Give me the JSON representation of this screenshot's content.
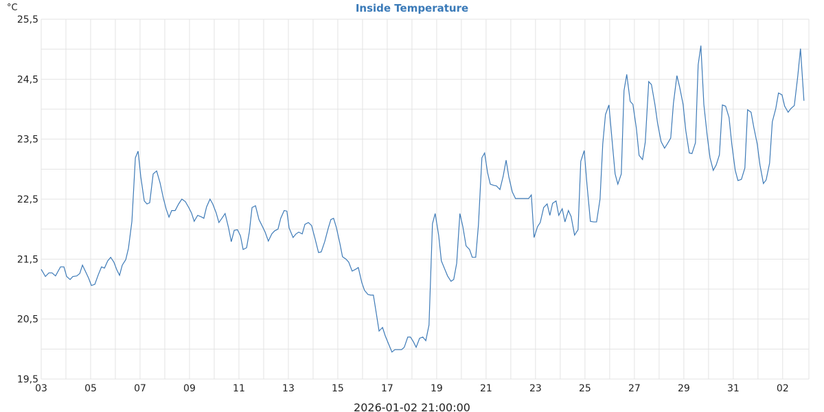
{
  "chart_data": {
    "type": "line",
    "title": "Inside Temperature",
    "y_unit": "°C",
    "x_label": "2026-01-02 21:00:00",
    "color": "#3d7ab7",
    "grid": true,
    "xlim": [
      0,
      31.06
    ],
    "ylim": [
      19.5,
      25.5
    ],
    "xticks": [
      {
        "value": 0,
        "label": "03"
      },
      {
        "value": 2,
        "label": "05"
      },
      {
        "value": 4,
        "label": "07"
      },
      {
        "value": 6,
        "label": "09"
      },
      {
        "value": 8,
        "label": "11"
      },
      {
        "value": 10,
        "label": "13"
      },
      {
        "value": 12,
        "label": "15"
      },
      {
        "value": 14,
        "label": "17"
      },
      {
        "value": 16,
        "label": "19"
      },
      {
        "value": 18,
        "label": "21"
      },
      {
        "value": 20,
        "label": "23"
      },
      {
        "value": 22,
        "label": "25"
      },
      {
        "value": 24,
        "label": "27"
      },
      {
        "value": 26,
        "label": "29"
      },
      {
        "value": 28,
        "label": "31"
      },
      {
        "value": 30,
        "label": "02"
      }
    ],
    "x_minor_grid": [
      1,
      3,
      5,
      7,
      9,
      11,
      13,
      15,
      17,
      19,
      21,
      23,
      25,
      27,
      29
    ],
    "yticks": [
      {
        "value": 19.5,
        "label": "19,5"
      },
      {
        "value": 20.5,
        "label": "20,5"
      },
      {
        "value": 21.5,
        "label": "21,5"
      },
      {
        "value": 22.5,
        "label": "22,5"
      },
      {
        "value": 23.5,
        "label": "23,5"
      },
      {
        "value": 24.5,
        "label": "24,5"
      },
      {
        "value": 25.5,
        "label": "25,5"
      }
    ],
    "y_minor_grid": [
      20,
      21,
      22,
      23,
      24,
      25
    ],
    "x": [
      0,
      0.17,
      0.31,
      0.44,
      0.58,
      0.78,
      0.92,
      1.03,
      1.17,
      1.28,
      1.44,
      1.56,
      1.67,
      1.83,
      1.92,
      2.03,
      2.17,
      2.31,
      2.44,
      2.56,
      2.69,
      2.81,
      2.94,
      3.06,
      3.17,
      3.28,
      3.42,
      3.53,
      3.67,
      3.81,
      3.92,
      4.03,
      4.17,
      4.28,
      4.39,
      4.53,
      4.67,
      4.81,
      4.94,
      5.06,
      5.17,
      5.28,
      5.42,
      5.56,
      5.69,
      5.83,
      5.97,
      6.08,
      6.19,
      6.33,
      6.5,
      6.58,
      6.69,
      6.83,
      6.94,
      7.08,
      7.19,
      7.31,
      7.44,
      7.58,
      7.69,
      7.81,
      7.94,
      8.06,
      8.17,
      8.31,
      8.42,
      8.53,
      8.67,
      8.81,
      8.92,
      9.06,
      9.19,
      9.33,
      9.44,
      9.58,
      9.69,
      9.83,
      9.94,
      10.03,
      10.19,
      10.31,
      10.42,
      10.56,
      10.67,
      10.81,
      10.94,
      11.08,
      11.22,
      11.33,
      11.47,
      11.61,
      11.72,
      11.83,
      11.94,
      12.08,
      12.19,
      12.33,
      12.44,
      12.58,
      12.72,
      12.83,
      12.97,
      13.08,
      13.22,
      13.33,
      13.44,
      13.56,
      13.67,
      13.81,
      13.92,
      14.06,
      14.19,
      14.31,
      14.44,
      14.58,
      14.69,
      14.83,
      14.94,
      15.06,
      15.17,
      15.31,
      15.44,
      15.56,
      15.69,
      15.83,
      15.94,
      16.08,
      16.19,
      16.33,
      16.44,
      16.58,
      16.69,
      16.81,
      16.94,
      17.06,
      17.19,
      17.33,
      17.44,
      17.58,
      17.69,
      17.83,
      17.94,
      18.06,
      18.17,
      18.31,
      18.42,
      18.56,
      18.69,
      18.81,
      18.92,
      19.06,
      19.19,
      19.31,
      19.44,
      19.61,
      19.72,
      19.83,
      19.94,
      20.08,
      20.19,
      20.33,
      20.47,
      20.58,
      20.69,
      20.83,
      20.94,
      21.08,
      21.19,
      21.33,
      21.44,
      21.58,
      21.72,
      21.83,
      21.97,
      22.08,
      22.22,
      22.36,
      22.47,
      22.61,
      22.72,
      22.83,
      22.97,
      23.11,
      23.22,
      23.33,
      23.47,
      23.58,
      23.69,
      23.83,
      23.94,
      24.08,
      24.19,
      24.33,
      24.44,
      24.58,
      24.69,
      24.83,
      24.94,
      25.08,
      25.22,
      25.33,
      25.47,
      25.58,
      25.72,
      25.83,
      25.97,
      26.08,
      26.22,
      26.33,
      26.47,
      26.58,
      26.69,
      26.81,
      26.94,
      27.06,
      27.19,
      27.31,
      27.44,
      27.56,
      27.69,
      27.83,
      27.94,
      28.08,
      28.19,
      28.33,
      28.47,
      28.58,
      28.72,
      28.83,
      28.97,
      29.08,
      29.22,
      29.33,
      29.47,
      29.58,
      29.72,
      29.83,
      29.97,
      30.08,
      30.22,
      30.33,
      30.47,
      30.61,
      30.72,
      30.86
    ],
    "values": [
      21.33,
      21.21,
      21.27,
      21.27,
      21.22,
      21.37,
      21.37,
      21.21,
      21.16,
      21.21,
      21.22,
      21.26,
      21.4,
      21.26,
      21.18,
      21.06,
      21.08,
      21.24,
      21.37,
      21.35,
      21.47,
      21.53,
      21.45,
      21.32,
      21.23,
      21.4,
      21.49,
      21.68,
      22.13,
      23.19,
      23.3,
      22.87,
      22.47,
      22.42,
      22.44,
      22.92,
      22.97,
      22.77,
      22.52,
      22.33,
      22.2,
      22.31,
      22.31,
      22.42,
      22.5,
      22.46,
      22.36,
      22.27,
      22.13,
      22.23,
      22.2,
      22.18,
      22.37,
      22.5,
      22.42,
      22.27,
      22.11,
      22.18,
      22.26,
      22.02,
      21.79,
      21.98,
      21.99,
      21.89,
      21.66,
      21.69,
      21.95,
      22.36,
      22.39,
      22.16,
      22.07,
      21.95,
      21.8,
      21.92,
      21.97,
      22,
      22.18,
      22.31,
      22.3,
      22.02,
      21.86,
      21.92,
      21.95,
      21.92,
      22.08,
      22.11,
      22.06,
      21.84,
      21.61,
      21.62,
      21.79,
      22.01,
      22.16,
      22.18,
      22.03,
      21.77,
      21.54,
      21.5,
      21.45,
      21.3,
      21.33,
      21.36,
      21.11,
      20.98,
      20.91,
      20.9,
      20.9,
      20.59,
      20.3,
      20.36,
      20.22,
      20.08,
      19.95,
      19.99,
      19.99,
      19.99,
      20.03,
      20.2,
      20.2,
      20.12,
      20.03,
      20.18,
      20.2,
      20.14,
      20.4,
      22.09,
      22.26,
      21.9,
      21.47,
      21.33,
      21.22,
      21.13,
      21.16,
      21.43,
      22.26,
      22.04,
      21.72,
      21.66,
      21.53,
      21.53,
      22.07,
      23.19,
      23.27,
      22.94,
      22.75,
      22.73,
      22.72,
      22.66,
      22.88,
      23.15,
      22.87,
      22.62,
      22.51,
      22.51,
      22.51,
      22.51,
      22.51,
      22.57,
      21.86,
      22.04,
      22.11,
      22.36,
      22.42,
      22.23,
      22.43,
      22.47,
      22.23,
      22.34,
      22.12,
      22.31,
      22.21,
      21.9,
      21.99,
      23.13,
      23.31,
      22.75,
      22.13,
      22.12,
      22.12,
      22.5,
      23.42,
      23.91,
      24.07,
      23.42,
      22.92,
      22.75,
      22.92,
      24.31,
      24.58,
      24.13,
      24.08,
      23.68,
      23.23,
      23.16,
      23.45,
      24.46,
      24.41,
      24.08,
      23.76,
      23.46,
      23.35,
      23.42,
      23.52,
      24.1,
      24.56,
      24.37,
      24.08,
      23.64,
      23.27,
      23.26,
      23.44,
      24.74,
      25.06,
      24.08,
      23.58,
      23.19,
      22.98,
      23.07,
      23.24,
      24.07,
      24.05,
      23.86,
      23.42,
      22.98,
      22.81,
      22.83,
      23.02,
      23.99,
      23.95,
      23.7,
      23.42,
      23.07,
      22.76,
      22.82,
      23.1,
      23.79,
      24.01,
      24.27,
      24.24,
      24.05,
      23.95,
      24.01,
      24.06,
      24.55,
      25.01,
      24.14
    ]
  }
}
